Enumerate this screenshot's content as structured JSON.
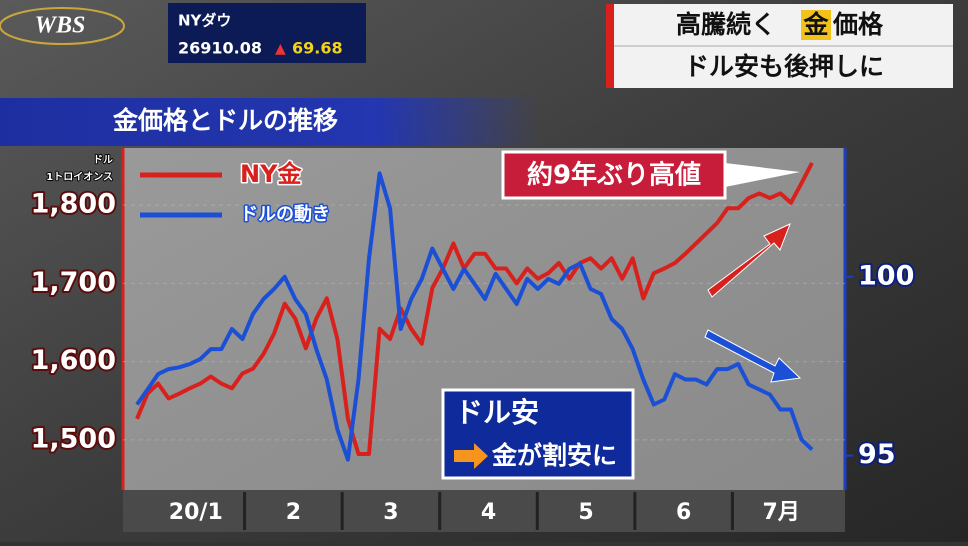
{
  "header": {
    "logo": "WBS",
    "ticker_name": "NYダウ",
    "ticker_value": "26910.08",
    "ticker_arrow": "▲",
    "ticker_change": "69.68",
    "title_parts": [
      "高騰続く",
      "金",
      "価格"
    ],
    "subtitle": "ドル安も後押しに"
  },
  "chart_data": {
    "type": "line",
    "title": "金価格とドルの推移",
    "ylabel": "ドル",
    "ylabel_sub": "1トロイオンス",
    "legend": "upper left",
    "x_labels": [
      "20/1",
      "2",
      "3",
      "4",
      "5",
      "6",
      "7月"
    ],
    "ylim": [
      1436,
      1873
    ],
    "yticks": [
      {
        "value": 1500,
        "label": "1,500"
      },
      {
        "value": 1600,
        "label": "1,600"
      },
      {
        "value": 1700,
        "label": "1,700"
      },
      {
        "value": 1800,
        "label": "1,800"
      }
    ],
    "y2lim": [
      94.04,
      103.6
    ],
    "y2ticks": [
      95,
      100
    ],
    "annotations": [
      "約9年ぶり高値",
      "ドル安",
      "金が割安に"
    ],
    "series": [
      {
        "name": "NY金",
        "color": "#d8211c",
        "axis": "y",
        "values": [
          1527,
          1559,
          1572,
          1553,
          1559,
          1566,
          1572,
          1581,
          1572,
          1566,
          1585,
          1591,
          1610,
          1636,
          1674,
          1655,
          1617,
          1655,
          1681,
          1629,
          1527,
          1482,
          1482,
          1642,
          1629,
          1668,
          1642,
          1623,
          1694,
          1719,
          1751,
          1719,
          1738,
          1738,
          1719,
          1719,
          1700,
          1719,
          1706,
          1713,
          1726,
          1706,
          1726,
          1732,
          1719,
          1732,
          1706,
          1732,
          1681,
          1713,
          1719,
          1726,
          1738,
          1751,
          1764,
          1777,
          1796,
          1796,
          1809,
          1815,
          1809,
          1815,
          1803,
          1828,
          1854
        ]
      },
      {
        "name": "ドルの動き",
        "color": "#1b4fd6",
        "axis": "y2",
        "values": [
          96.43,
          96.85,
          97.28,
          97.42,
          97.47,
          97.56,
          97.7,
          97.98,
          97.98,
          98.54,
          98.26,
          98.96,
          99.38,
          99.66,
          100.0,
          99.38,
          98.96,
          97.98,
          97.13,
          95.73,
          94.89,
          97.13,
          100.51,
          102.89,
          101.91,
          98.54,
          99.38,
          99.94,
          100.79,
          100.22,
          99.66,
          100.22,
          99.8,
          99.38,
          100.08,
          99.66,
          99.24,
          99.94,
          99.66,
          99.94,
          99.8,
          100.22,
          100.37,
          99.66,
          99.52,
          98.82,
          98.54,
          97.98,
          97.13,
          96.43,
          96.57,
          97.28,
          97.13,
          97.13,
          96.99,
          97.42,
          97.42,
          97.56,
          96.99,
          96.85,
          96.71,
          96.29,
          96.29,
          95.45,
          95.17
        ]
      }
    ]
  }
}
